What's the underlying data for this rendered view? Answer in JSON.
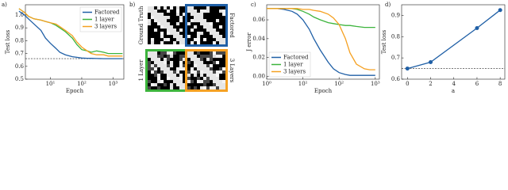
{
  "chart_data": [
    {
      "type": "line",
      "label": "a)",
      "xlabel": "Epoch",
      "ylabel": "Test loss",
      "xscale": "log",
      "x": [
        1,
        1.5,
        2,
        3,
        5,
        7,
        10,
        15,
        20,
        30,
        50,
        70,
        100,
        150,
        200,
        300,
        500,
        700,
        1000,
        1500,
        2000
      ],
      "xlim": [
        1.6,
        2200
      ],
      "ylim": [
        0.5,
        1.08
      ],
      "xticks": [
        {
          "value": 10,
          "label": "10¹"
        },
        {
          "value": 100,
          "label": "10²"
        },
        {
          "value": 1000,
          "label": "10³"
        }
      ],
      "yticks": [
        {
          "value": 0.5,
          "label": "0.5"
        },
        {
          "value": 0.6,
          "label": "0.6"
        },
        {
          "value": 0.7,
          "label": "0.7"
        },
        {
          "value": 0.8,
          "label": "0.8"
        },
        {
          "value": 0.9,
          "label": "0.9"
        },
        {
          "value": 1,
          "label": "1.0"
        }
      ],
      "hline": 0.66,
      "legend": "upper right",
      "series": [
        {
          "name": "Factored",
          "color": "#1f5fa6",
          "values": [
            1.03,
            1.0,
            0.97,
            0.93,
            0.88,
            0.82,
            0.78,
            0.74,
            0.71,
            0.69,
            0.675,
            0.67,
            0.665,
            0.663,
            0.662,
            0.661,
            0.66,
            0.66,
            0.66,
            0.66,
            0.66
          ]
        },
        {
          "name": "1 layer",
          "color": "#3cb43c",
          "values": [
            1.05,
            1.02,
            0.99,
            0.97,
            0.96,
            0.95,
            0.94,
            0.92,
            0.9,
            0.87,
            0.82,
            0.77,
            0.73,
            0.72,
            0.71,
            0.72,
            0.71,
            0.7,
            0.7,
            0.7,
            0.7
          ]
        },
        {
          "name": "3 layers",
          "color": "#f5a020",
          "values": [
            1.05,
            1.02,
            0.99,
            0.97,
            0.96,
            0.95,
            0.94,
            0.93,
            0.91,
            0.88,
            0.84,
            0.79,
            0.75,
            0.72,
            0.7,
            0.69,
            0.69,
            0.68,
            0.68,
            0.68,
            0.68
          ]
        }
      ]
    },
    {
      "type": "image",
      "label": "b)",
      "panels": [
        {
          "title": "Ground Truth",
          "color": "#ffffff"
        },
        {
          "title": "Factored",
          "color": "#1f5fa6"
        },
        {
          "title": "1 Layer",
          "color": "#3cb43c"
        },
        {
          "title": "3 Layers",
          "color": "#f5a020"
        }
      ]
    },
    {
      "type": "line",
      "label": "c)",
      "xlabel": "Epoch",
      "ylabel": "J error",
      "xscale": "log",
      "x": [
        1,
        1.5,
        2,
        3,
        5,
        7,
        10,
        15,
        20,
        30,
        50,
        70,
        100,
        150,
        200,
        300,
        500,
        700,
        1000
      ],
      "xlim": [
        1,
        1300
      ],
      "ylim": [
        -0.003,
        0.076
      ],
      "xticks": [
        {
          "value": 1,
          "label": "10⁰"
        },
        {
          "value": 10,
          "label": "10¹"
        },
        {
          "value": 100,
          "label": "10²"
        },
        {
          "value": 1000,
          "label": "10³"
        }
      ],
      "yticks": [
        {
          "value": 0,
          "label": "0.00"
        },
        {
          "value": 0.02,
          "label": "0.02"
        },
        {
          "value": 0.04,
          "label": "0.04"
        },
        {
          "value": 0.06,
          "label": "0.06"
        }
      ],
      "legend": "lower left",
      "series": [
        {
          "name": "Factored",
          "color": "#1f5fa6",
          "values": [
            0.072,
            0.072,
            0.072,
            0.071,
            0.069,
            0.066,
            0.06,
            0.05,
            0.04,
            0.028,
            0.015,
            0.008,
            0.004,
            0.002,
            0.001,
            0.001,
            0.001,
            0.001,
            0.001
          ]
        },
        {
          "name": "1 layer",
          "color": "#3cb43c",
          "values": [
            0.072,
            0.072,
            0.072,
            0.072,
            0.072,
            0.071,
            0.069,
            0.066,
            0.063,
            0.06,
            0.057,
            0.056,
            0.055,
            0.054,
            0.054,
            0.053,
            0.052,
            0.052,
            0.052
          ]
        },
        {
          "name": "3 layers",
          "color": "#f5a020",
          "values": [
            0.072,
            0.072,
            0.072,
            0.072,
            0.072,
            0.072,
            0.071,
            0.071,
            0.07,
            0.069,
            0.066,
            0.062,
            0.055,
            0.04,
            0.025,
            0.013,
            0.008,
            0.007,
            0.007
          ]
        }
      ]
    },
    {
      "type": "line",
      "label": "d)",
      "xlabel": "a",
      "ylabel": "Test loss",
      "markers": true,
      "x": [
        0,
        2,
        6,
        8
      ],
      "xlim": [
        -0.5,
        8.4
      ],
      "ylim": [
        0.6,
        0.95
      ],
      "xticks": [
        0,
        2,
        4,
        6,
        8
      ],
      "yticks": [
        {
          "value": 0.6,
          "label": "0.6"
        },
        {
          "value": 0.7,
          "label": "0.7"
        },
        {
          "value": 0.8,
          "label": "0.8"
        },
        {
          "value": 0.9,
          "label": "0.9"
        }
      ],
      "hline": 0.65,
      "series": [
        {
          "color": "#1f5fa6",
          "values": [
            0.65,
            0.68,
            0.84,
            0.925
          ]
        }
      ]
    }
  ]
}
